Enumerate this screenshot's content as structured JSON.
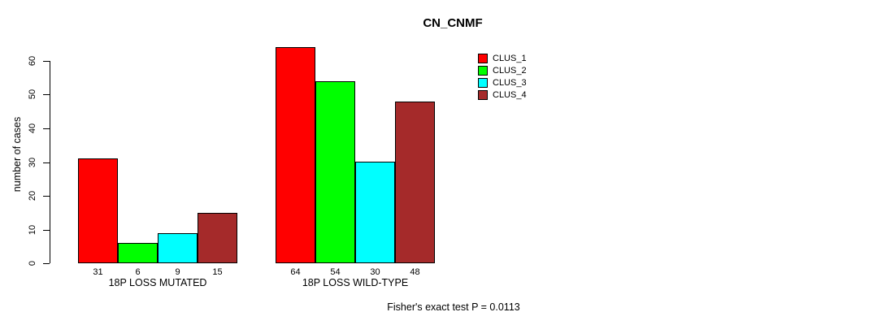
{
  "chart_data": {
    "type": "bar",
    "title": "CN_CNMF",
    "ylabel": "number of cases",
    "xlabel": "",
    "categories": [
      "18P LOSS MUTATED",
      "18P LOSS WILD-TYPE"
    ],
    "series": [
      {
        "name": "CLUS_1",
        "color": "#FF0000",
        "values": [
          31,
          64
        ]
      },
      {
        "name": "CLUS_2",
        "color": "#00FF00",
        "values": [
          6,
          54
        ]
      },
      {
        "name": "CLUS_3",
        "color": "#00FFFF",
        "values": [
          9,
          30
        ]
      },
      {
        "name": "CLUS_4",
        "color": "#A52A2A",
        "values": [
          15,
          48
        ]
      }
    ],
    "y_ticks": [
      0,
      10,
      20,
      30,
      40,
      50,
      60
    ],
    "ylim": [
      0,
      66
    ],
    "grid": false,
    "bar_value_labels_shown": true,
    "legend_position": "top-right-inside",
    "annotation": "Fisher's exact test P = 0.0113"
  }
}
